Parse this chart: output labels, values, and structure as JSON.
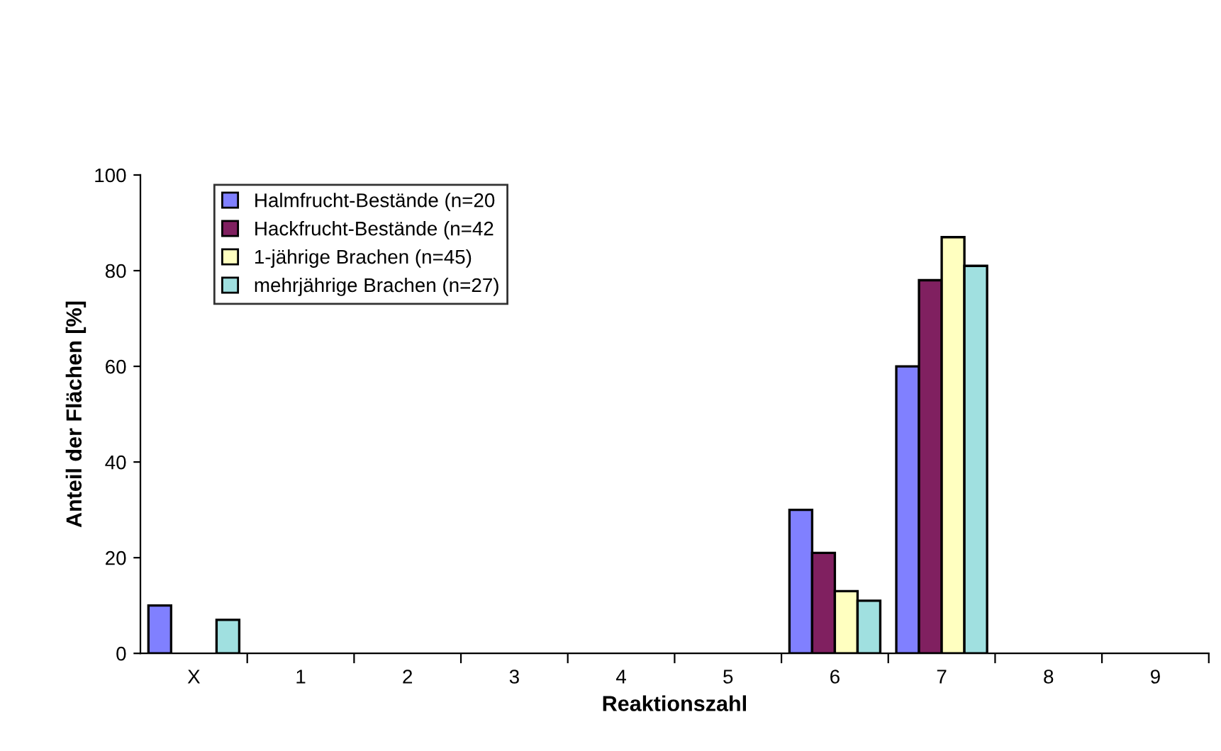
{
  "chart_data": {
    "type": "bar",
    "xlabel": "Reaktionszahl",
    "ylabel": "Anteil der Flächen [%]",
    "categories": [
      "X",
      "1",
      "2",
      "3",
      "4",
      "5",
      "6",
      "7",
      "8",
      "9"
    ],
    "series": [
      {
        "name": "Halmfrucht-Bestände (n=20",
        "color": "#8080ff",
        "values": [
          10,
          0,
          0,
          0,
          0,
          0,
          30,
          60,
          0,
          0
        ]
      },
      {
        "name": "Hackfrucht-Bestände (n=42",
        "color": "#802060",
        "values": [
          0,
          0,
          0,
          0,
          0,
          0,
          21,
          78,
          0,
          0
        ]
      },
      {
        "name": "1-jährige Brachen (n=45)",
        "color": "#ffffc0",
        "values": [
          0,
          0,
          0,
          0,
          0,
          0,
          13,
          87,
          0,
          0
        ]
      },
      {
        "name": "mehrjährige Brachen (n=27)",
        "color": "#a0e0e0",
        "values": [
          7,
          0,
          0,
          0,
          0,
          0,
          11,
          81,
          0,
          0
        ]
      }
    ],
    "ylim": [
      0,
      100
    ],
    "yticks": [
      0,
      20,
      40,
      60,
      80,
      100
    ],
    "grid": false,
    "legend": "top left"
  }
}
